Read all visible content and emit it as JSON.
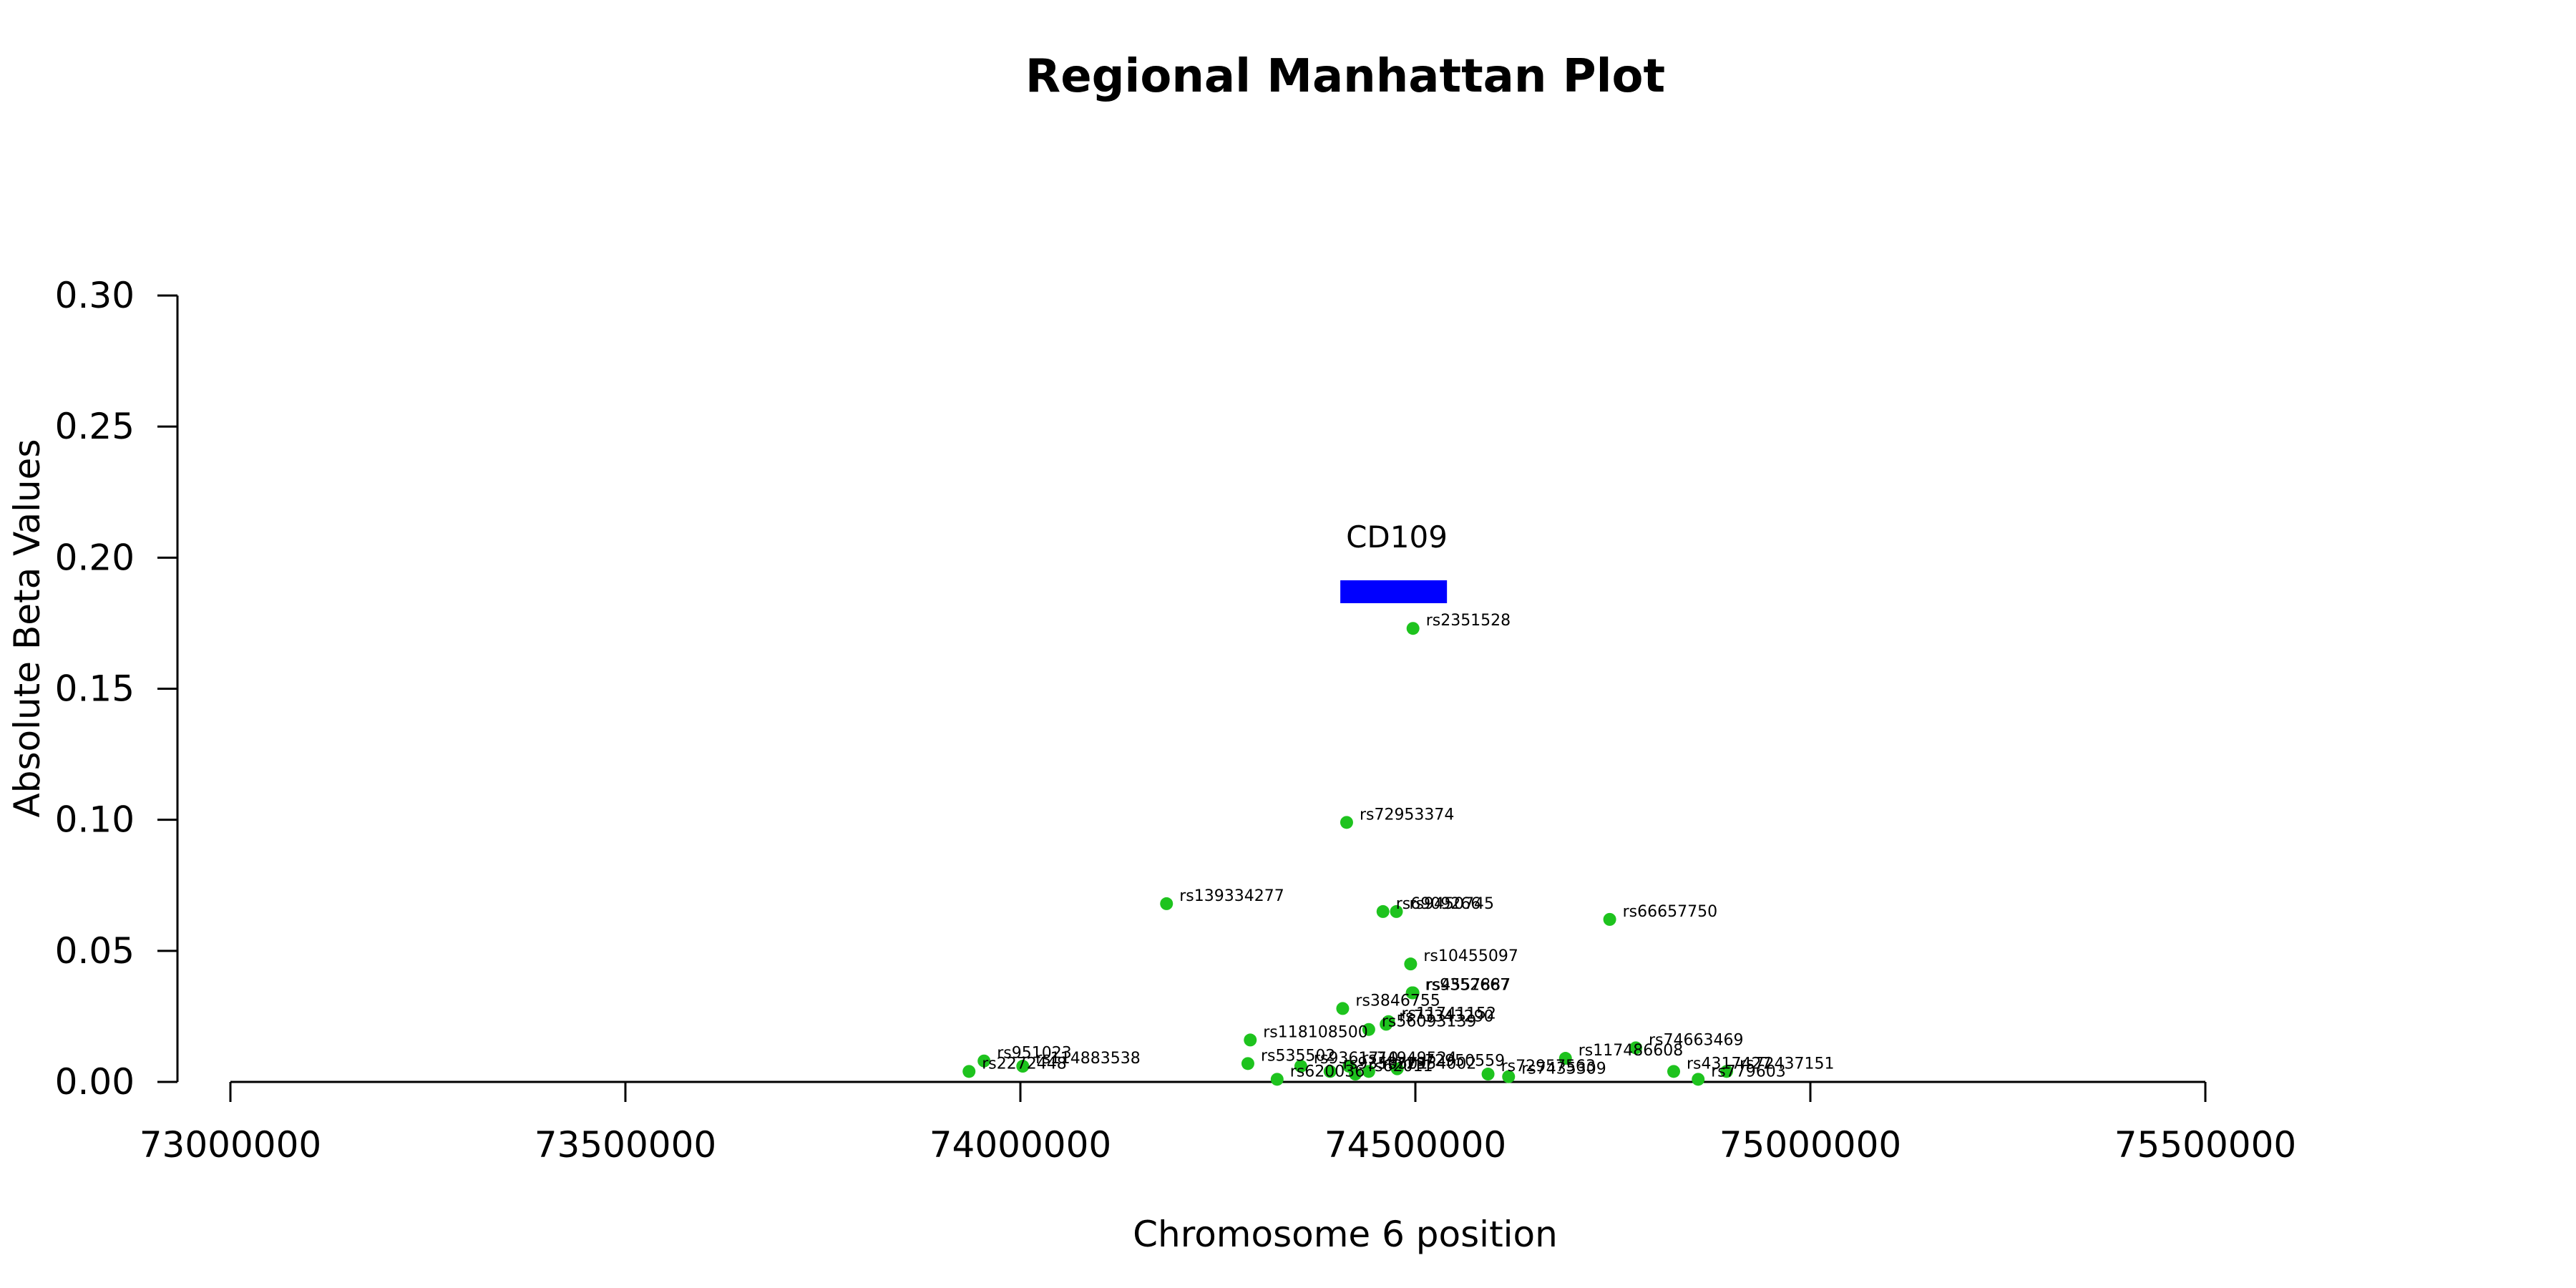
{
  "chart_data": {
    "type": "scatter",
    "title": "Regional Manhattan Plot",
    "xlabel": "Chromosome 6 position",
    "ylabel": "Absolute Beta Values",
    "xlim": [
      72930000,
      75620000
    ],
    "ylim": [
      0,
      0.3
    ],
    "xticks": [
      73000000,
      73500000,
      74000000,
      74500000,
      75000000,
      75500000
    ],
    "xtick_labels": [
      "73000000",
      "73500000",
      "74000000",
      "74500000",
      "75000000",
      "75500000"
    ],
    "yticks": [
      0.0,
      0.05,
      0.1,
      0.15,
      0.2,
      0.25,
      0.3
    ],
    "ytick_labels": [
      "0.00",
      "0.05",
      "0.10",
      "0.15",
      "0.20",
      "0.25",
      "0.30"
    ],
    "point_color": "#1ec31e",
    "gene_color": "#0000ff",
    "gene": {
      "name": "CD109",
      "start": 74405000,
      "end": 74540000,
      "y": 0.187
    },
    "points": [
      {
        "label": "rs2351528",
        "x": 74497000,
        "y": 0.173
      },
      {
        "label": "rs72953374",
        "x": 74413000,
        "y": 0.099
      },
      {
        "label": "rs139334277",
        "x": 74185000,
        "y": 0.068
      },
      {
        "label": "rs6909266",
        "x": 74459000,
        "y": 0.065
      },
      {
        "label": "rs9450745",
        "x": 74476000,
        "y": 0.065
      },
      {
        "label": "rs66657750",
        "x": 74746000,
        "y": 0.062
      },
      {
        "label": "rs10455097",
        "x": 74494000,
        "y": 0.045
      },
      {
        "label": "rs9352667",
        "x": 74496000,
        "y": 0.034
      },
      {
        "label": "rs4557887",
        "x": 74497000,
        "y": 0.034
      },
      {
        "label": "rs3846755",
        "x": 74408000,
        "y": 0.028
      },
      {
        "label": "rs11741152",
        "x": 74466000,
        "y": 0.023
      },
      {
        "label": "rs73343290",
        "x": 74463000,
        "y": 0.022
      },
      {
        "label": "rs56093139",
        "x": 74441000,
        "y": 0.02
      },
      {
        "label": "rs118108500",
        "x": 74291000,
        "y": 0.016
      },
      {
        "label": "rs74663469",
        "x": 74779000,
        "y": 0.013
      },
      {
        "label": "rs117486608",
        "x": 74690000,
        "y": 0.009
      },
      {
        "label": "rs951023",
        "x": 73954000,
        "y": 0.008
      },
      {
        "label": "rs114883538",
        "x": 74003000,
        "y": 0.006
      },
      {
        "label": "rs2272448",
        "x": 73935000,
        "y": 0.004
      },
      {
        "label": "rs535502",
        "x": 74288000,
        "y": 0.007
      },
      {
        "label": "rs9361710",
        "x": 74355000,
        "y": 0.006
      },
      {
        "label": "rs74949524",
        "x": 74416000,
        "y": 0.006
      },
      {
        "label": "rs72950559",
        "x": 74477000,
        "y": 0.005
      },
      {
        "label": "rs72954002",
        "x": 74441000,
        "y": 0.004
      },
      {
        "label": "rs9350501",
        "x": 74392000,
        "y": 0.004
      },
      {
        "label": "rs62011",
        "x": 74424000,
        "y": 0.003
      },
      {
        "label": "rs620036",
        "x": 74325000,
        "y": 0.001
      },
      {
        "label": "rs72957563",
        "x": 74592000,
        "y": 0.003
      },
      {
        "label": "rs7435309",
        "x": 74618000,
        "y": 0.002
      },
      {
        "label": "rs4317427",
        "x": 74827000,
        "y": 0.004
      },
      {
        "label": "rs72437151",
        "x": 74894000,
        "y": 0.004
      },
      {
        "label": "rs779603",
        "x": 74858000,
        "y": 0.001
      }
    ]
  }
}
